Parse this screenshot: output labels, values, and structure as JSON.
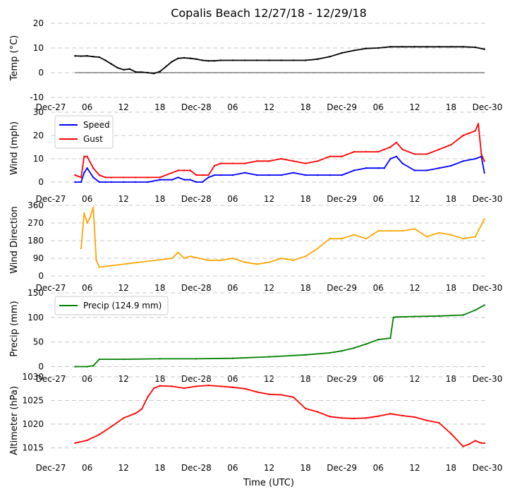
{
  "title": "Copalis Beach 12/27/18 - 12/29/18",
  "xlabel": "Time (UTC)",
  "x_tick_labels": [
    "Dec-27",
    "06",
    "12",
    "18",
    "Dec-28",
    "06",
    "12",
    "18",
    "Dec-29",
    "06",
    "12",
    "18",
    "Dec-30"
  ],
  "colors": {
    "temp": "#000000",
    "speed": "#0000ff",
    "gust": "#ff0000",
    "direction": "#ffa500",
    "precip": "#008000",
    "altimeter": "#ff0000",
    "grid": "#c8c8c8"
  },
  "chart_data": [
    {
      "type": "line",
      "ylabel": "Temp ($^\\circ$C)",
      "ylabel_display": "Temp (°C)",
      "ylim": [
        -10,
        20
      ],
      "yticks": [
        "-10",
        "0",
        "10",
        "20"
      ],
      "zero_line": true,
      "x_units": "hours since Dec-27 00:00 UTC",
      "series": [
        {
          "name": "Temp",
          "color": "#000000",
          "x": [
            4,
            5,
            6,
            7,
            8,
            9,
            10,
            11,
            12,
            13,
            14,
            15,
            16,
            17,
            18,
            19,
            20,
            21,
            22,
            23,
            24,
            25,
            26,
            27,
            28,
            30,
            32,
            34,
            36,
            38,
            40,
            42,
            44,
            46,
            48,
            50,
            52,
            54,
            56,
            58,
            60,
            62,
            64,
            66,
            68,
            70,
            71.5
          ],
          "y": [
            6.8,
            6.7,
            6.8,
            6.5,
            6.3,
            5.0,
            3.5,
            2.0,
            1.2,
            1.5,
            0.3,
            0.2,
            0.0,
            -0.3,
            0.5,
            2.5,
            4.5,
            5.8,
            6.0,
            5.8,
            5.5,
            5.0,
            4.8,
            4.8,
            5.0,
            5.0,
            5.0,
            5.0,
            5.0,
            5.0,
            5.0,
            5.0,
            5.5,
            6.5,
            8.0,
            9.0,
            9.8,
            10.0,
            10.5,
            10.5,
            10.5,
            10.5,
            10.5,
            10.5,
            10.5,
            10.3,
            9.5
          ]
        }
      ]
    },
    {
      "type": "line",
      "ylabel": "Wind (mph)",
      "ylim": [
        0,
        30
      ],
      "yticks": [
        "0",
        "10",
        "20",
        "30"
      ],
      "legend": "top-left",
      "x_units": "hours since Dec-27 00:00 UTC",
      "series": [
        {
          "name": "Speed",
          "color": "#0000ff",
          "x": [
            4,
            5,
            5.5,
            6,
            7,
            8,
            9,
            10,
            12,
            14,
            16,
            18,
            20,
            21,
            22,
            23,
            24,
            25,
            26,
            27,
            28,
            30,
            32,
            34,
            36,
            38,
            40,
            42,
            44,
            46,
            48,
            50,
            52,
            54,
            55,
            56,
            57,
            58,
            60,
            62,
            64,
            66,
            68,
            70,
            71,
            71.5
          ],
          "y": [
            0,
            0,
            4,
            6,
            2,
            0,
            0,
            0,
            0,
            0,
            0,
            1,
            1,
            2,
            1,
            1,
            0,
            0,
            2,
            3,
            3,
            3,
            4,
            3,
            3,
            3,
            4,
            3,
            3,
            3,
            3,
            5,
            6,
            6,
            6,
            10,
            11,
            8,
            5,
            5,
            6,
            7,
            9,
            10,
            11,
            4
          ]
        },
        {
          "name": "Gust",
          "color": "#ff0000",
          "x": [
            4,
            5,
            5.5,
            6,
            7,
            8,
            9,
            10,
            12,
            14,
            16,
            18,
            20,
            21,
            22,
            23,
            24,
            25,
            26,
            27,
            28,
            30,
            32,
            34,
            36,
            38,
            40,
            42,
            44,
            46,
            48,
            50,
            52,
            54,
            55,
            56,
            57,
            58,
            60,
            62,
            64,
            66,
            68,
            69,
            70,
            70.5,
            71,
            71.5
          ],
          "y": [
            3,
            2,
            11,
            11,
            6,
            3,
            2,
            2,
            2,
            2,
            2,
            2,
            4,
            5,
            5,
            5,
            3,
            3,
            3,
            7,
            8,
            8,
            8,
            9,
            9,
            10,
            9,
            8,
            9,
            11,
            11,
            13,
            13,
            13,
            14,
            15,
            17,
            14,
            12,
            12,
            14,
            16,
            20,
            21,
            22,
            25,
            12,
            9
          ]
        }
      ]
    },
    {
      "type": "line",
      "ylabel": "Wind Direction",
      "ylim": [
        0,
        360
      ],
      "yticks": [
        "0",
        "90",
        "180",
        "270",
        "360"
      ],
      "x_units": "hours since Dec-27 00:00 UTC",
      "series": [
        {
          "name": "Direction",
          "color": "#ffa500",
          "x": [
            5,
            5.5,
            6,
            6.5,
            7,
            7.5,
            8,
            20,
            21,
            22,
            23,
            26,
            28,
            30,
            32,
            34,
            36,
            38,
            40,
            42,
            44,
            46,
            48,
            50,
            52,
            54,
            56,
            58,
            60,
            62,
            64,
            66,
            68,
            70,
            71.5
          ],
          "y": [
            140,
            320,
            270,
            300,
            350,
            80,
            45,
            90,
            120,
            90,
            100,
            80,
            80,
            90,
            70,
            60,
            70,
            90,
            80,
            100,
            140,
            190,
            190,
            210,
            190,
            230,
            230,
            230,
            240,
            200,
            220,
            210,
            190,
            200,
            290
          ]
        }
      ]
    },
    {
      "type": "line",
      "ylabel": "Precip (mm)",
      "ylim": [
        -15,
        150
      ],
      "yticks": [
        "0",
        "50",
        "100",
        "150"
      ],
      "legend": "top-left",
      "x_units": "hours since Dec-27 00:00 UTC",
      "series": [
        {
          "name": "Precip (124.9 mm)",
          "color": "#008000",
          "x": [
            4,
            6,
            7,
            8,
            12,
            18,
            24,
            30,
            36,
            42,
            46,
            48,
            50,
            52,
            54,
            56,
            56.5,
            57,
            60,
            64,
            68,
            70,
            71.5
          ],
          "y": [
            0,
            0,
            2,
            15,
            15,
            16,
            16,
            17,
            20,
            24,
            28,
            32,
            38,
            46,
            55,
            58,
            100,
            101,
            102,
            103,
            105,
            115,
            125
          ]
        }
      ]
    },
    {
      "type": "line",
      "ylabel": "Altimeter (hPa)",
      "ylim": [
        1013,
        1030
      ],
      "yticks": [
        "1015",
        "1020",
        "1025",
        "1030"
      ],
      "x_units": "hours since Dec-27 00:00 UTC",
      "series": [
        {
          "name": "Altimeter",
          "color": "#ff0000",
          "x": [
            4,
            6,
            8,
            10,
            12,
            14,
            15,
            16,
            17,
            18,
            20,
            22,
            24,
            26,
            28,
            30,
            32,
            34,
            36,
            38,
            40,
            42,
            44,
            46,
            48,
            50,
            52,
            54,
            56,
            58,
            60,
            62,
            64,
            66,
            68,
            69,
            70,
            71,
            71.5
          ],
          "y": [
            1016,
            1016.6,
            1017.8,
            1019.5,
            1021.3,
            1022.3,
            1023.2,
            1025.8,
            1027.6,
            1028.1,
            1028.0,
            1027.6,
            1028.0,
            1028.2,
            1028.0,
            1027.8,
            1027.5,
            1026.8,
            1026.3,
            1026.2,
            1025.7,
            1023.3,
            1022.6,
            1021.6,
            1021.3,
            1021.2,
            1021.3,
            1021.7,
            1022.2,
            1021.8,
            1021.5,
            1020.8,
            1020.3,
            1018.0,
            1015.3,
            1015.8,
            1016.5,
            1016.0,
            1016.0
          ]
        }
      ]
    }
  ]
}
